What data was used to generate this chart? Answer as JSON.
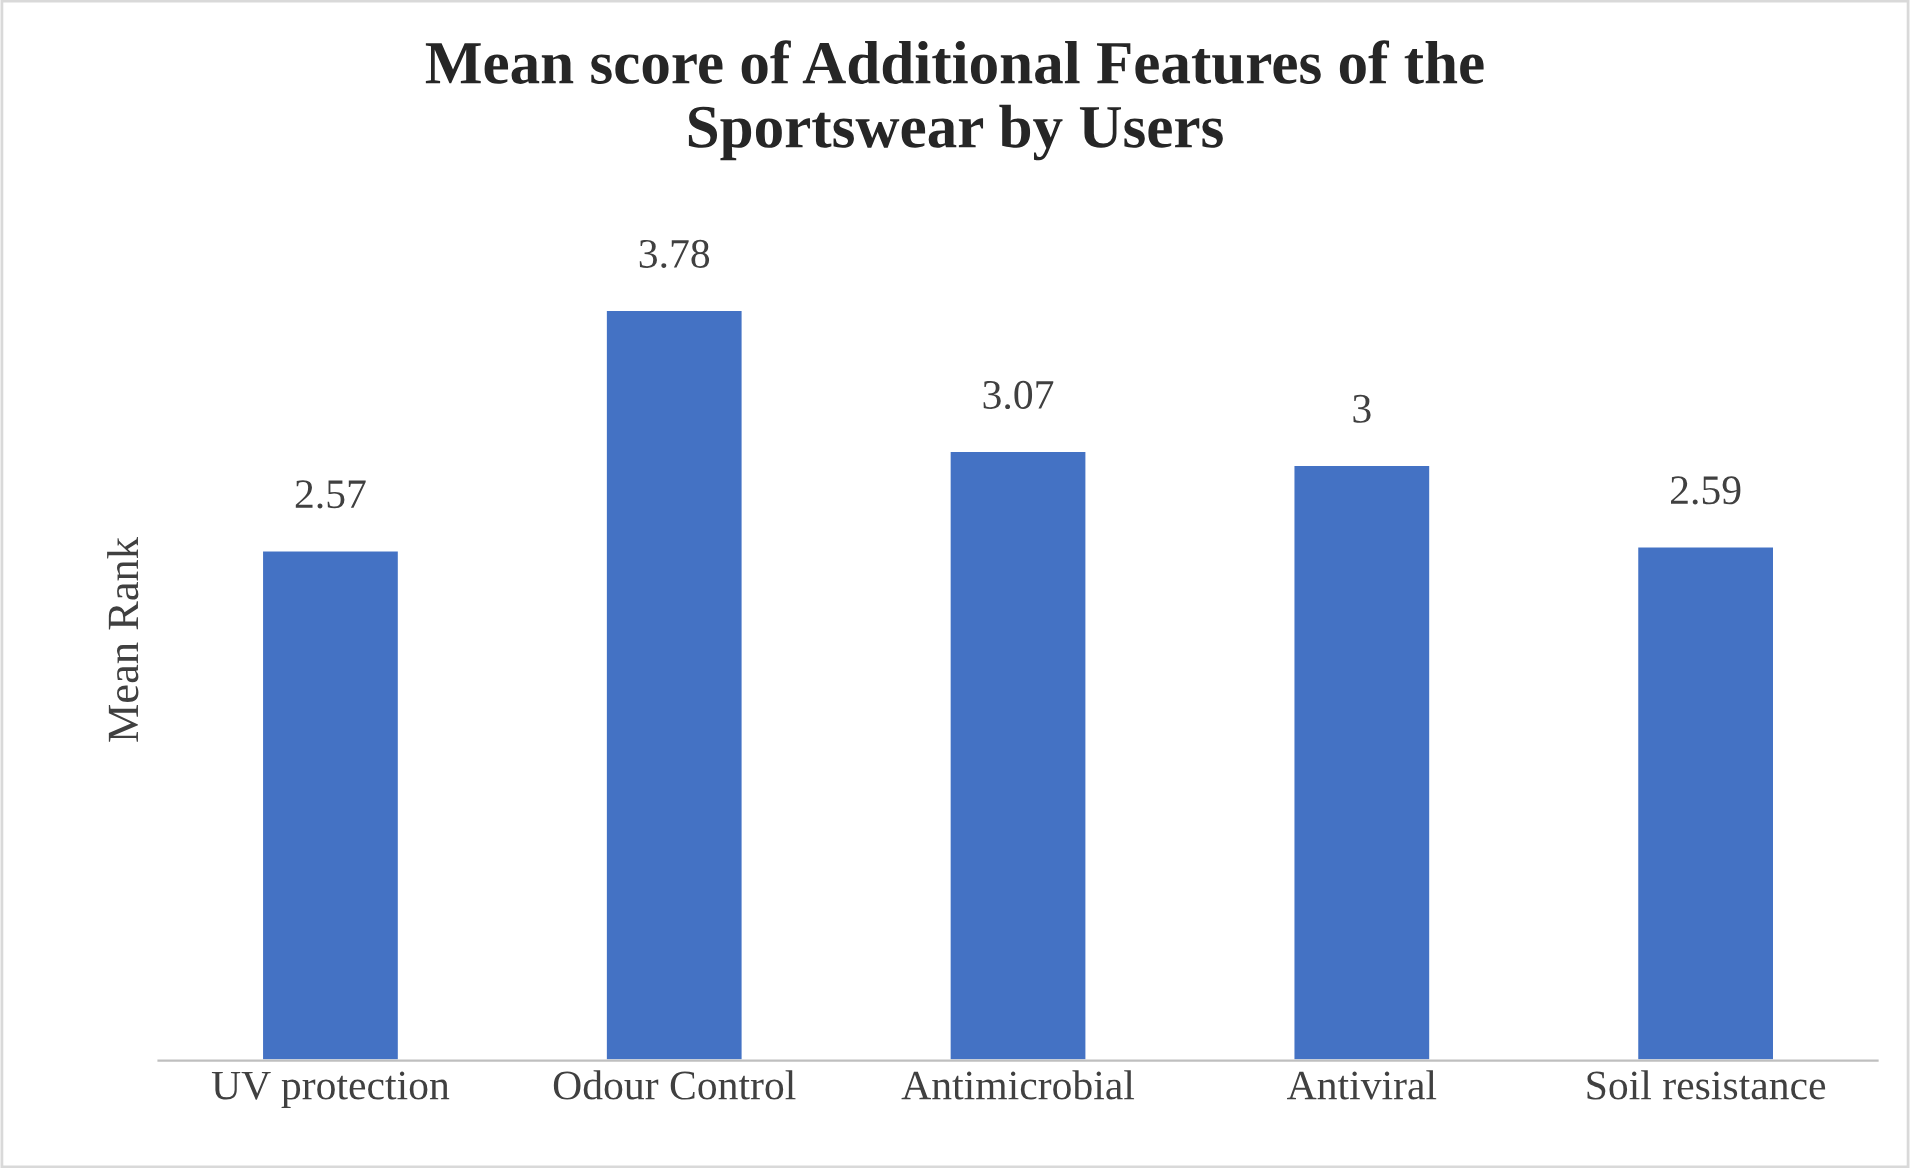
{
  "chart_data": {
    "type": "bar",
    "title": "Mean score of Additional Features of the\nSportswear by Users",
    "ylabel": "Mean Rank",
    "categories": [
      "UV protection",
      "Odour Control",
      "Antimicrobial",
      "Antiviral",
      "Soil resistance"
    ],
    "values": [
      2.57,
      3.78,
      3.07,
      3,
      2.59
    ],
    "color": "#4472c4",
    "data_labels": true,
    "value_labels": [
      "2.57",
      "3.78",
      "3.07",
      "3",
      "2.59"
    ]
  }
}
